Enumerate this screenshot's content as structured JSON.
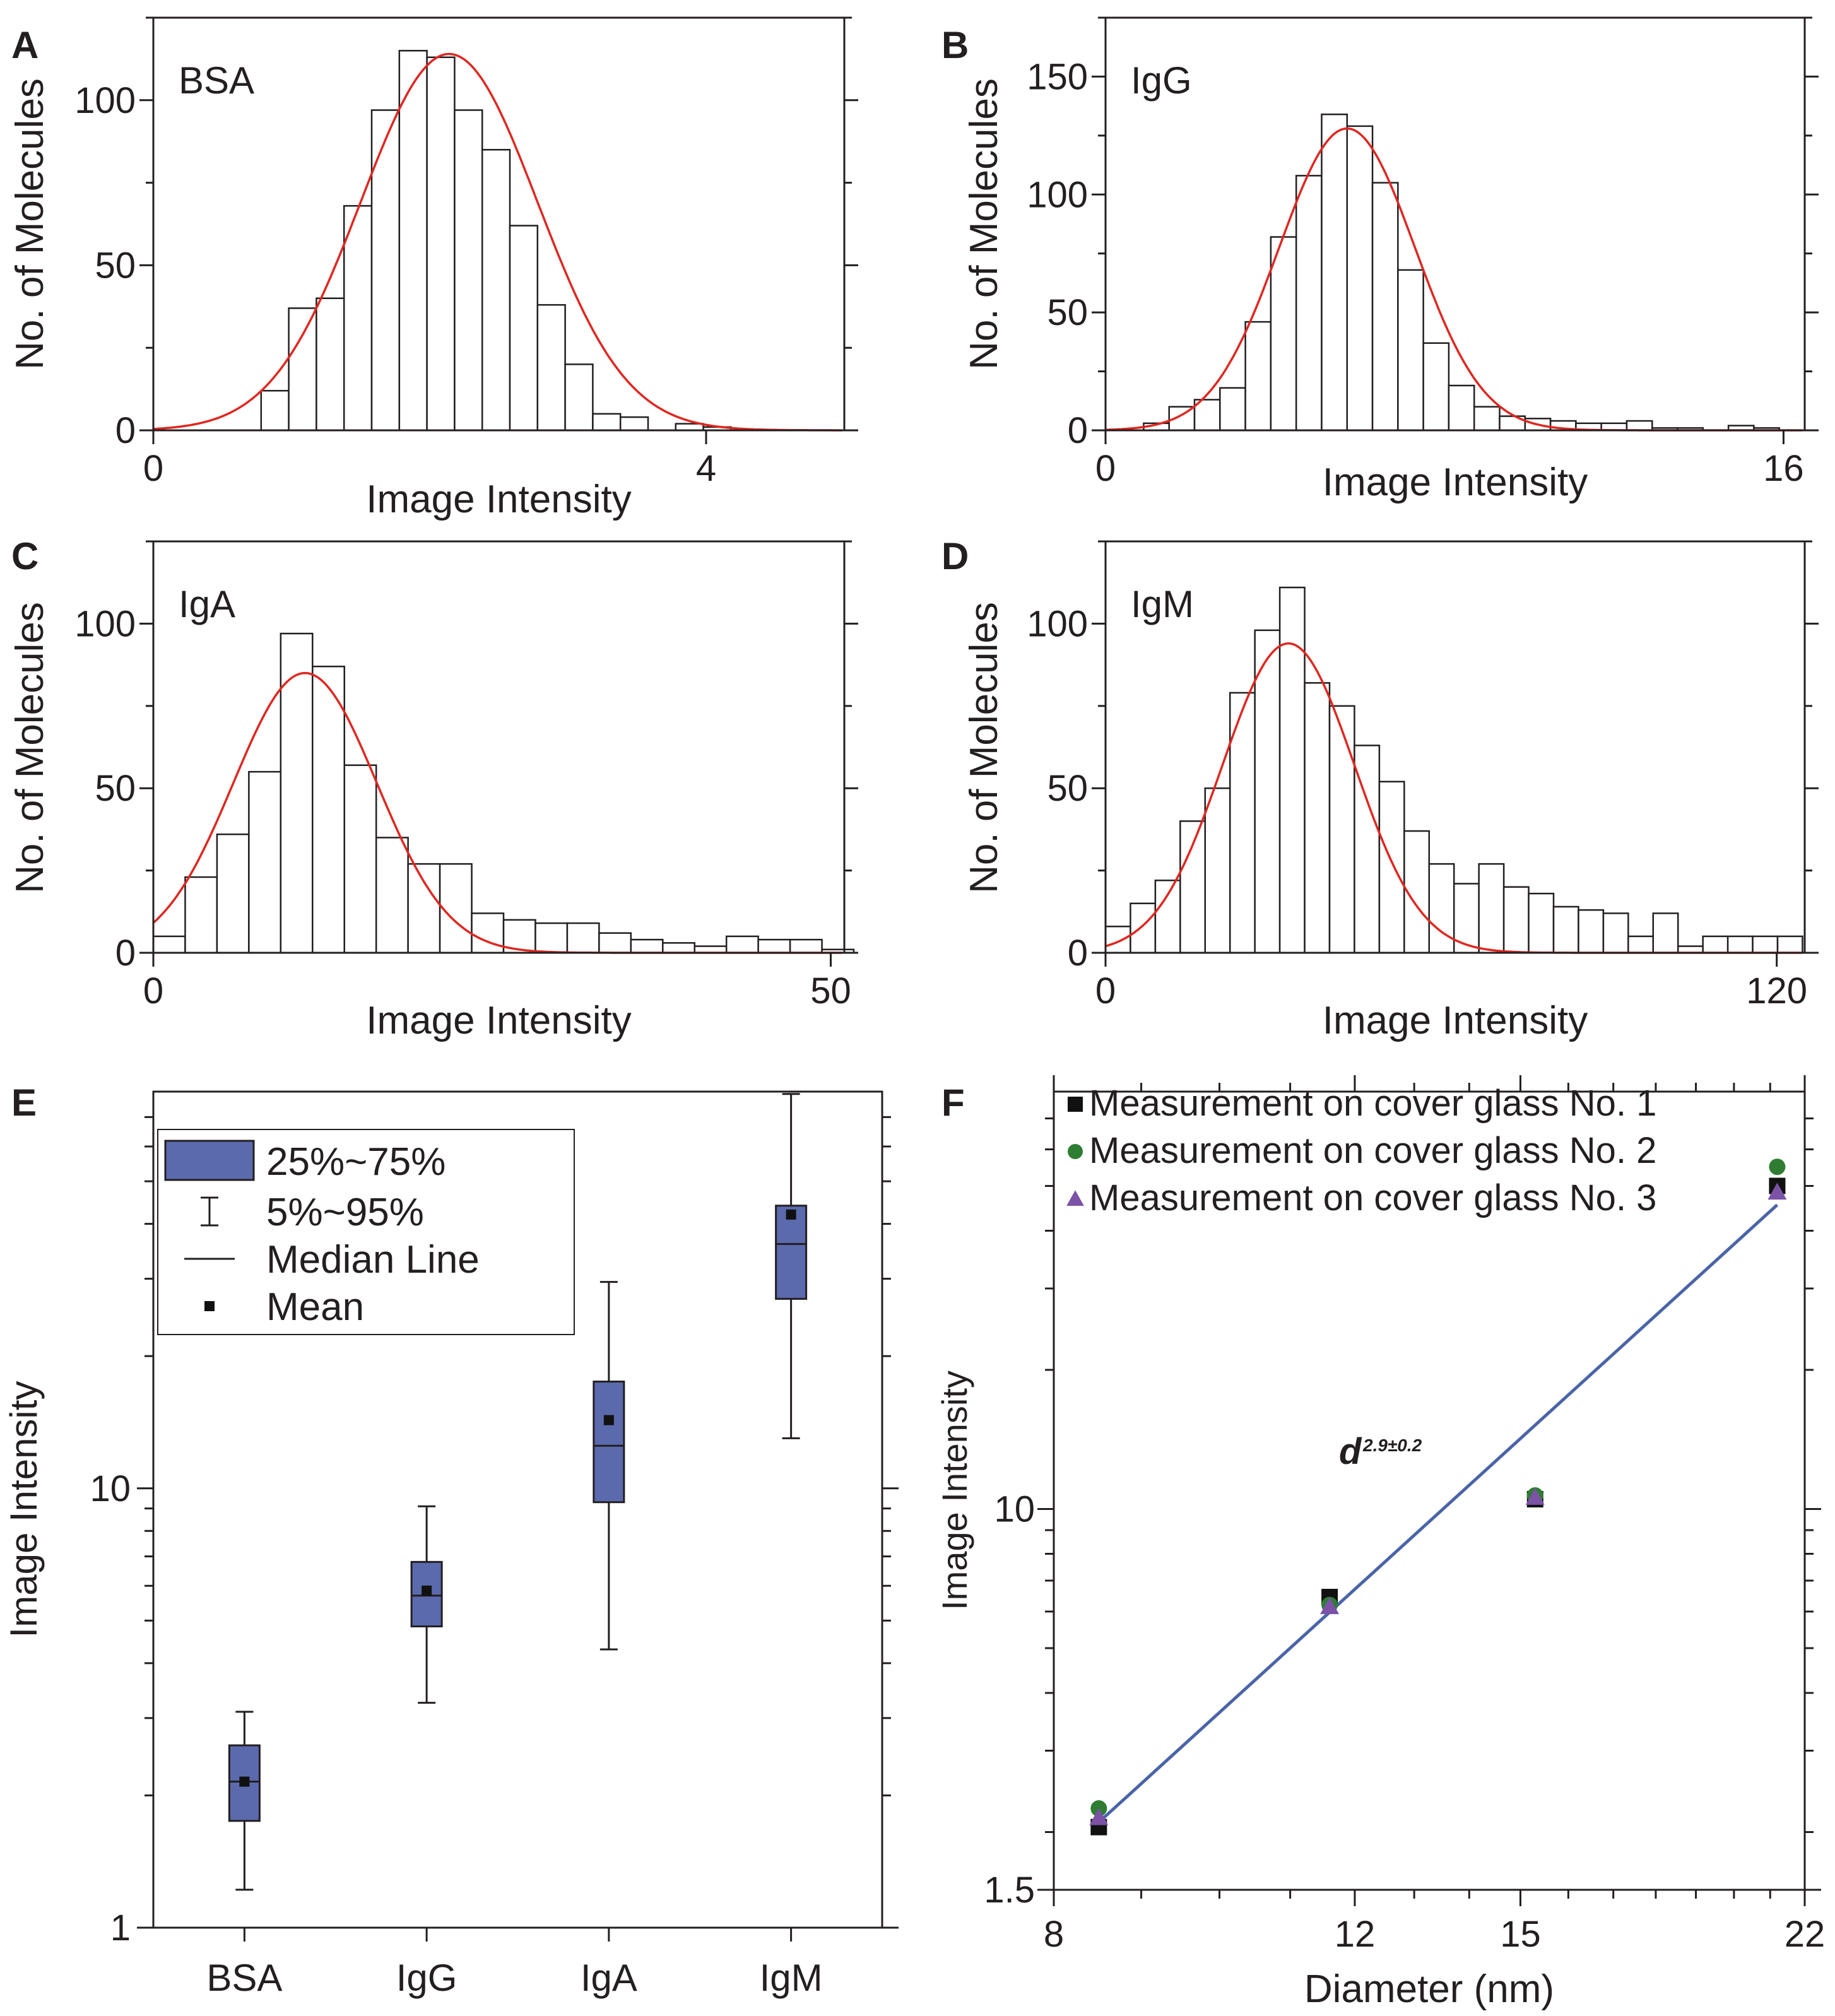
{
  "colors": {
    "axis": "#231f20",
    "bar_fill": "#ffffff",
    "bar_stroke": "#231f20",
    "fit_line": "#e0261f",
    "box_fill": "#5b6aad",
    "trend_line": "#4a64a8",
    "series_square": "#111111",
    "series_circle": "#2e7d32",
    "series_triangle": "#7b52a6",
    "exponent_text": "#3a5ca8"
  },
  "chart_data": [
    {
      "panel": "A",
      "type": "bar",
      "annotation": "BSA",
      "xlabel": "Image Intensity",
      "ylabel": "No. of Molecules",
      "xlim": [
        0,
        5
      ],
      "ylim": [
        0,
        125
      ],
      "xticks": [
        {
          "v": 0,
          "label": "0"
        },
        {
          "v": 4,
          "label": "4"
        }
      ],
      "yticks": [
        {
          "v": 0,
          "label": "0"
        },
        {
          "v": 50,
          "label": "50"
        },
        {
          "v": 100,
          "label": "100"
        }
      ],
      "bin_start": 0.78,
      "bin_width": 0.2,
      "counts": [
        12,
        37,
        40,
        68,
        97,
        115,
        113,
        97,
        85,
        62,
        38,
        20,
        5,
        4,
        0,
        2,
        1
      ],
      "fit": {
        "amplitude": 114,
        "mean": 2.14,
        "sigma": 0.64
      }
    },
    {
      "panel": "B",
      "type": "bar",
      "annotation": "IgG",
      "xlabel": "Image Intensity",
      "ylabel": "No. of Molecules",
      "xlim": [
        0,
        16.5
      ],
      "ylim": [
        0,
        175
      ],
      "xticks": [
        {
          "v": 0,
          "label": "0"
        },
        {
          "v": 16,
          "label": "16"
        }
      ],
      "yticks": [
        {
          "v": 0,
          "label": "0"
        },
        {
          "v": 50,
          "label": "50"
        },
        {
          "v": 100,
          "label": "100"
        },
        {
          "v": 150,
          "label": "150"
        }
      ],
      "bin_start": 0.9,
      "bin_width": 0.6,
      "counts": [
        3,
        10,
        13,
        18,
        46,
        82,
        108,
        134,
        129,
        105,
        68,
        37,
        19,
        10,
        6,
        5,
        4,
        3,
        3,
        4,
        1,
        1,
        0,
        2,
        1
      ],
      "fit": {
        "amplitude": 128,
        "mean": 5.7,
        "sigma": 1.6
      }
    },
    {
      "panel": "C",
      "type": "bar",
      "annotation": "IgA",
      "xlabel": "Image Intensity",
      "ylabel": "No. of Molecules",
      "xlim": [
        0,
        51
      ],
      "ylim": [
        0,
        125
      ],
      "xticks": [
        {
          "v": 0,
          "label": "0"
        },
        {
          "v": 50,
          "label": "50"
        }
      ],
      "yticks": [
        {
          "v": 0,
          "label": "0"
        },
        {
          "v": 50,
          "label": "50"
        },
        {
          "v": 100,
          "label": "100"
        }
      ],
      "bin_start": 0,
      "bin_width": 2.35,
      "counts": [
        5,
        23,
        36,
        55,
        97,
        87,
        57,
        35,
        27,
        27,
        12,
        10,
        9,
        9,
        6,
        4,
        3,
        2,
        5,
        4,
        4,
        1
      ],
      "fit": {
        "amplitude": 85,
        "mean": 11.2,
        "sigma": 5.3
      }
    },
    {
      "panel": "D",
      "type": "bar",
      "annotation": "IgM",
      "xlabel": "Image Intensity",
      "ylabel": "No. of Molecules",
      "xlim": [
        0,
        125
      ],
      "ylim": [
        0,
        125
      ],
      "xticks": [
        {
          "v": 0,
          "label": "0"
        },
        {
          "v": 120,
          "label": "120"
        }
      ],
      "yticks": [
        {
          "v": 0,
          "label": "0"
        },
        {
          "v": 50,
          "label": "50"
        },
        {
          "v": 100,
          "label": "100"
        }
      ],
      "bin_start": 0,
      "bin_width": 4.45,
      "counts": [
        8,
        15,
        22,
        40,
        50,
        79,
        98,
        111,
        82,
        75,
        63,
        52,
        37,
        27,
        21,
        27,
        20,
        18,
        14,
        13,
        12,
        5,
        12,
        2,
        5,
        5,
        5,
        5
      ],
      "fit": {
        "amplitude": 94,
        "mean": 32.7,
        "sigma": 11.8
      }
    },
    {
      "panel": "E",
      "type": "box",
      "ylabel": "Image Intensity",
      "yscale": "log",
      "ylim": [
        1,
        80
      ],
      "yticks": [
        {
          "v": 1,
          "label": "1"
        },
        {
          "v": 10,
          "label": "10"
        }
      ],
      "categories": [
        "BSA",
        "IgG",
        "IgA",
        "IgM"
      ],
      "boxes": [
        {
          "p5": 1.22,
          "q1": 1.75,
          "median": 2.15,
          "q3": 2.6,
          "p95": 3.1,
          "mean": 2.15
        },
        {
          "p5": 3.25,
          "q1": 4.85,
          "median": 5.7,
          "q3": 6.8,
          "p95": 9.1,
          "mean": 5.85
        },
        {
          "p5": 4.3,
          "q1": 9.3,
          "median": 12.5,
          "q3": 17.5,
          "p95": 29.5,
          "mean": 14.3
        },
        {
          "p5": 13.0,
          "q1": 27.0,
          "median": 36.0,
          "q3": 44.0,
          "p95": 79.0,
          "mean": 42.0
        }
      ],
      "legend": [
        {
          "symbol": "box",
          "label": "25%~75%"
        },
        {
          "symbol": "whisker",
          "label": "5%~95%"
        },
        {
          "symbol": "line",
          "label": "Median Line"
        },
        {
          "symbol": "square",
          "label": "Mean"
        }
      ]
    },
    {
      "panel": "F",
      "type": "scatter",
      "xlabel": "Diameter (nm)",
      "ylabel": "Image Intensity",
      "xscale": "log",
      "yscale": "log",
      "xlim": [
        8,
        22
      ],
      "ylim": [
        1.5,
        80
      ],
      "xticks": [
        {
          "v": 8,
          "label": "8"
        },
        {
          "v": 12,
          "label": "12"
        },
        {
          "v": 15,
          "label": "15"
        },
        {
          "v": 22,
          "label": "22"
        }
      ],
      "yticks": [
        {
          "v": 1.5,
          "label": "1.5"
        },
        {
          "v": 10,
          "label": "10"
        }
      ],
      "series": [
        {
          "name": "Measurement on cover glass No. 1",
          "marker": "square",
          "x": [
            8.5,
            11.6,
            15.3,
            21.2
          ],
          "y": [
            2.05,
            6.45,
            10.5,
            50.0
          ]
        },
        {
          "name": "Measurement on cover glass No. 2",
          "marker": "circle",
          "x": [
            8.5,
            11.6,
            15.3,
            21.2
          ],
          "y": [
            2.25,
            6.2,
            10.7,
            55.0
          ]
        },
        {
          "name": "Measurement on cover glass No. 3",
          "marker": "triangle",
          "x": [
            8.5,
            11.6,
            15.3,
            21.2
          ],
          "y": [
            2.15,
            6.15,
            10.6,
            48.5
          ]
        }
      ],
      "fit_line": {
        "x": [
          8.5,
          21.2
        ],
        "y": [
          2.1,
          45.5
        ]
      },
      "annotation": {
        "base": "d",
        "exponent": "2.9±0.2"
      }
    }
  ]
}
